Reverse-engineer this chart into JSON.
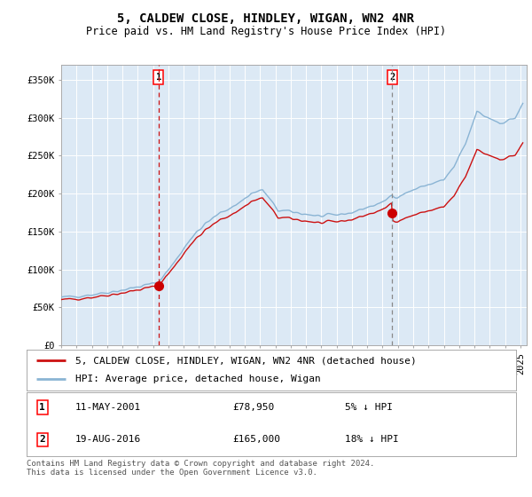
{
  "title": "5, CALDEW CLOSE, HINDLEY, WIGAN, WN2 4NR",
  "subtitle": "Price paid vs. HM Land Registry's House Price Index (HPI)",
  "legend_line1": "5, CALDEW CLOSE, HINDLEY, WIGAN, WN2 4NR (detached house)",
  "legend_line2": "HPI: Average price, detached house, Wigan",
  "sale1_date": "11-MAY-2001",
  "sale1_price": 78950,
  "sale1_label": "£78,950",
  "sale1_pct": "5% ↓ HPI",
  "sale2_date": "19-AUG-2016",
  "sale2_price": 165000,
  "sale2_label": "£165,000",
  "sale2_pct": "18% ↓ HPI",
  "footnote": "Contains HM Land Registry data © Crown copyright and database right 2024.\nThis data is licensed under the Open Government Licence v3.0.",
  "ylabel_ticks": [
    "£0",
    "£50K",
    "£100K",
    "£150K",
    "£200K",
    "£250K",
    "£300K",
    "£350K"
  ],
  "ytick_vals": [
    0,
    50000,
    100000,
    150000,
    200000,
    250000,
    300000,
    350000
  ],
  "ylim": [
    0,
    370000
  ],
  "bg_color": "#dce9f5",
  "hpi_color": "#8ab4d4",
  "price_color": "#cc1111",
  "dot_color": "#cc0000",
  "vline1_color": "#cc1111",
  "vline2_color": "#888888",
  "grid_color": "#ffffff",
  "title_fontsize": 10,
  "subtitle_fontsize": 8.5,
  "tick_fontsize": 7.5,
  "legend_fontsize": 8,
  "footnote_fontsize": 6.5
}
